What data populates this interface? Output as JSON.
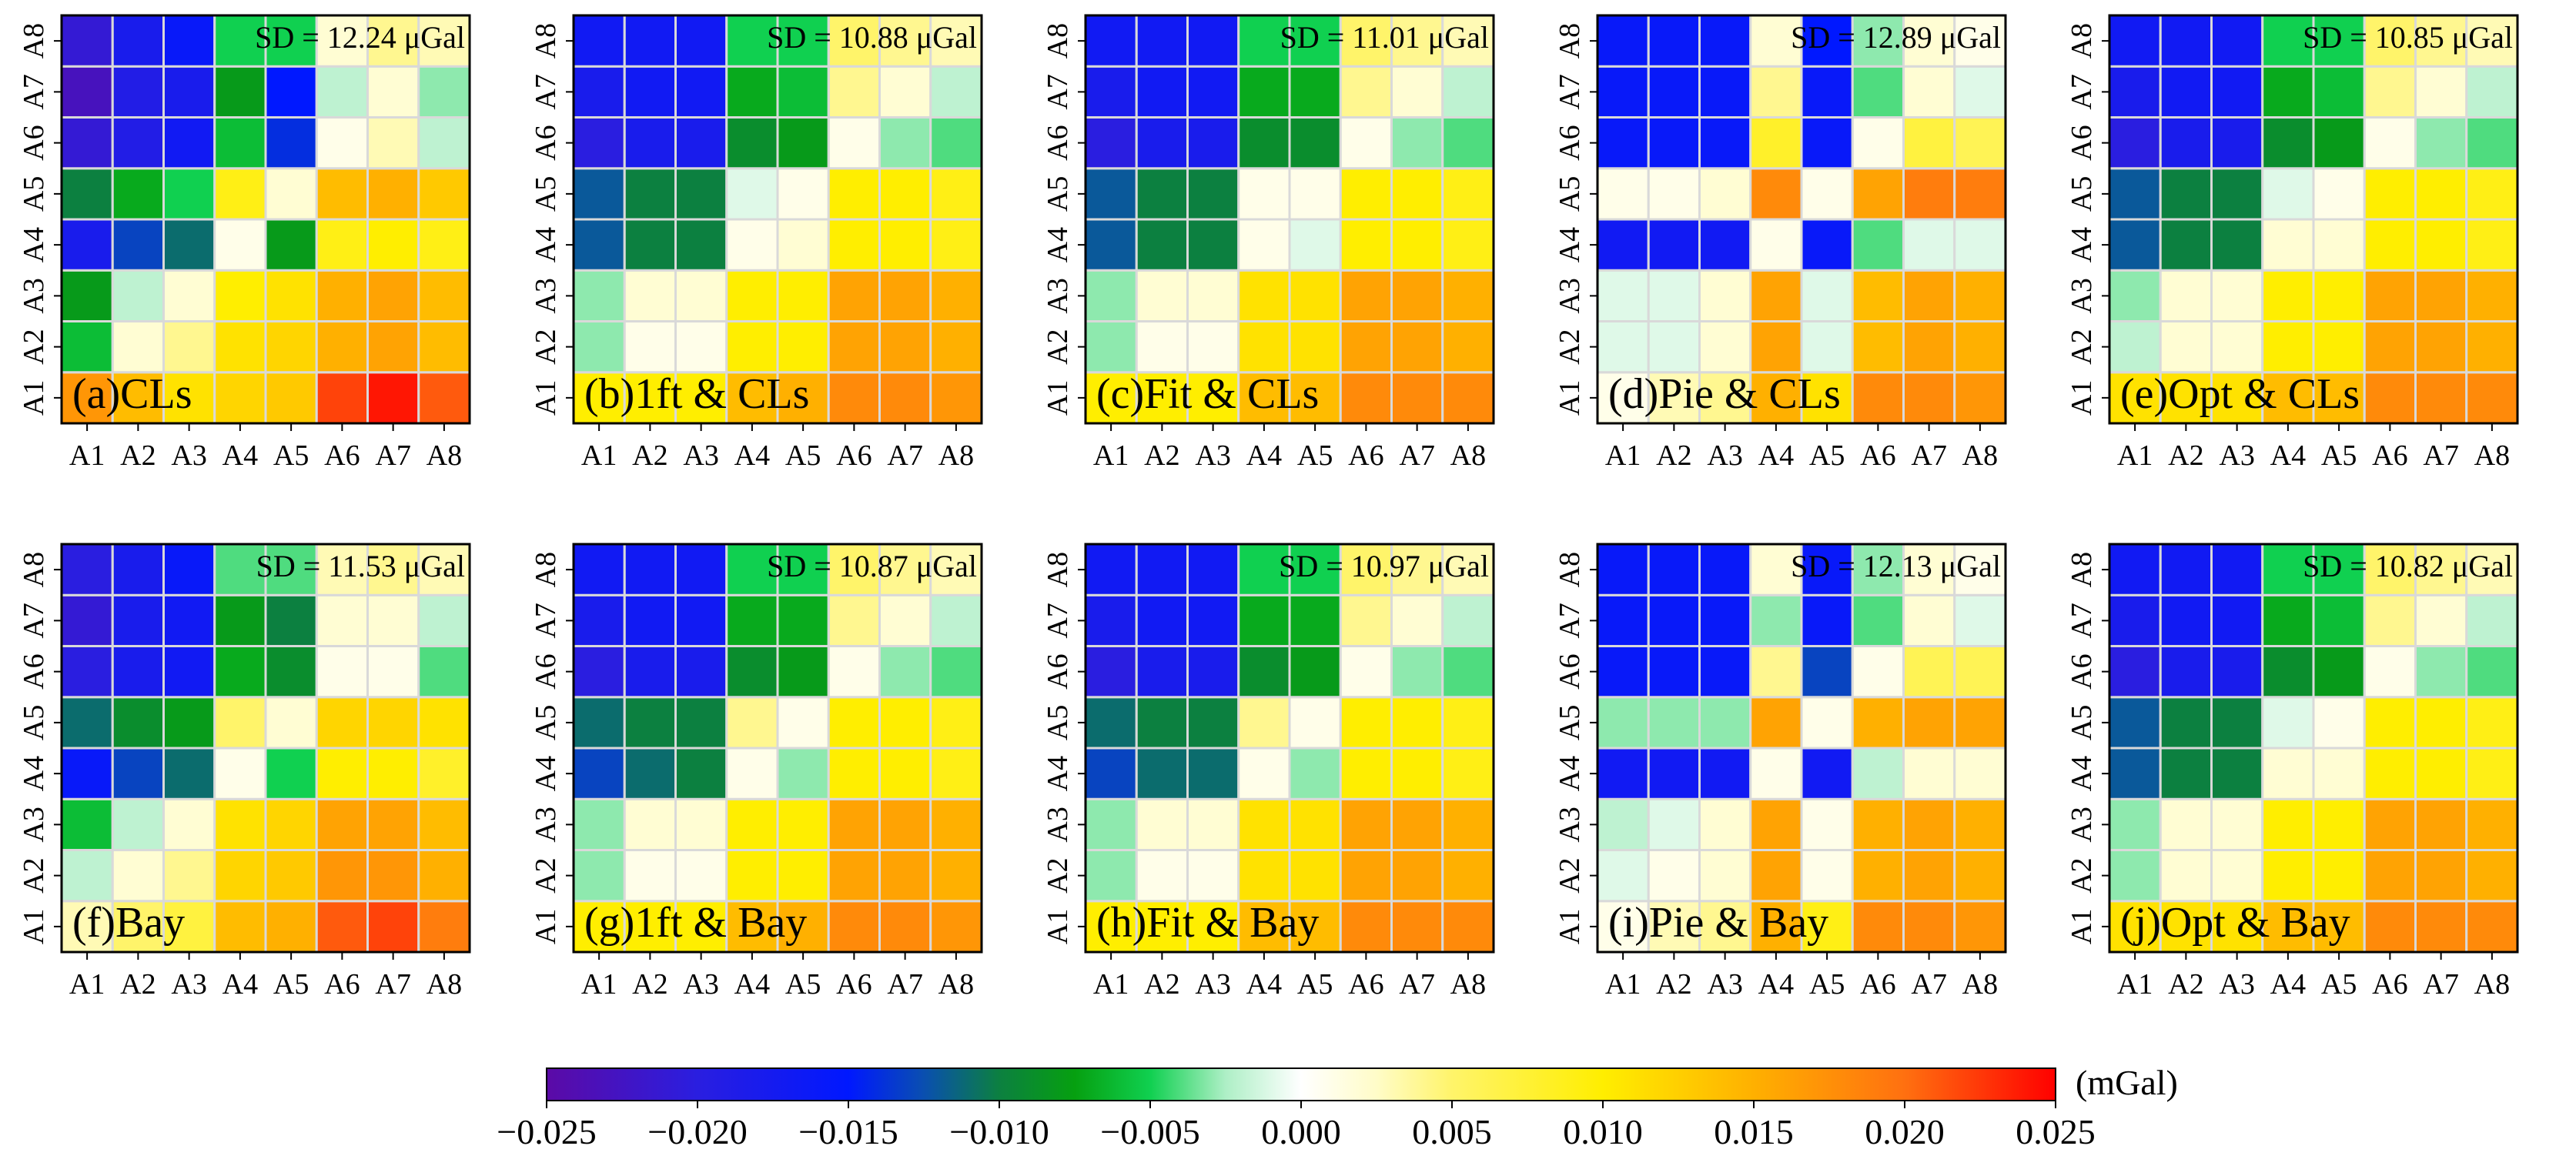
{
  "figure": {
    "panel_grid": {
      "rows": 2,
      "cols": 5
    },
    "colorbar": {
      "unit": "(mGal)",
      "range": [
        -0.025,
        0.025
      ],
      "ticks": [
        "−0.025",
        "−0.020",
        "−0.015",
        "−0.010",
        "−0.005",
        "0.000",
        "0.005",
        "0.010",
        "0.015",
        "0.020",
        "0.025"
      ],
      "stops": [
        [
          -0.025,
          "#5b0aa6"
        ],
        [
          -0.02,
          "#2a1ee0"
        ],
        [
          -0.015,
          "#0018ff"
        ],
        [
          -0.0125,
          "#0a4fb0"
        ],
        [
          -0.01,
          "#0c8040"
        ],
        [
          -0.0075,
          "#06a010"
        ],
        [
          -0.005,
          "#10d050"
        ],
        [
          -0.0025,
          "#aeefc6"
        ],
        [
          0.0,
          "#ffffff"
        ],
        [
          0.0025,
          "#fffcc8"
        ],
        [
          0.005,
          "#fff46a"
        ],
        [
          0.01,
          "#ffee00"
        ],
        [
          0.015,
          "#ffb000"
        ],
        [
          0.02,
          "#ff7010"
        ],
        [
          0.025,
          "#ff0000"
        ]
      ]
    }
  },
  "chart_data": [
    {
      "type": "heatmap",
      "label": "(a)CLs",
      "sd": "SD = 12.24 μGal",
      "x": [
        "A1",
        "A2",
        "A3",
        "A4",
        "A5",
        "A6",
        "A7",
        "A8"
      ],
      "y": [
        "A1",
        "A2",
        "A3",
        "A4",
        "A5",
        "A6",
        "A7",
        "A8"
      ],
      "z": [
        [
          0.017,
          0.014,
          0.011,
          0.012,
          0.013,
          0.022,
          0.024,
          0.021
        ],
        [
          -0.006,
          0.002,
          0.004,
          0.011,
          0.012,
          0.015,
          0.016,
          0.014
        ],
        [
          -0.008,
          -0.002,
          0.002,
          0.01,
          0.011,
          0.015,
          0.016,
          0.014
        ],
        [
          -0.018,
          -0.013,
          -0.011,
          0.001,
          -0.008,
          0.009,
          0.01,
          0.009
        ],
        [
          -0.01,
          -0.007,
          -0.005,
          0.009,
          0.002,
          0.014,
          0.015,
          0.013
        ],
        [
          -0.021,
          -0.019,
          -0.017,
          -0.006,
          -0.014,
          0.001,
          0.003,
          -0.002
        ],
        [
          -0.023,
          -0.019,
          -0.018,
          -0.008,
          -0.015,
          -0.002,
          0.002,
          -0.003
        ],
        [
          -0.021,
          -0.018,
          -0.016,
          -0.005,
          -0.005,
          0.002,
          0.004,
          0.003
        ]
      ]
    },
    {
      "type": "heatmap",
      "label": "(b)1ft & CLs",
      "sd": "SD = 10.88 μGal",
      "x": [
        "A1",
        "A2",
        "A3",
        "A4",
        "A5",
        "A6",
        "A7",
        "A8"
      ],
      "y": [
        "A1",
        "A2",
        "A3",
        "A4",
        "A5",
        "A6",
        "A7",
        "A8"
      ],
      "z": [
        [
          0.01,
          0.01,
          0.01,
          0.014,
          0.015,
          0.018,
          0.018,
          0.017
        ],
        [
          -0.003,
          0.001,
          0.001,
          0.01,
          0.01,
          0.016,
          0.016,
          0.015
        ],
        [
          -0.003,
          0.002,
          0.002,
          0.01,
          0.01,
          0.016,
          0.016,
          0.015
        ],
        [
          -0.012,
          -0.01,
          -0.01,
          0.001,
          0.002,
          0.01,
          0.01,
          0.009
        ],
        [
          -0.012,
          -0.01,
          -0.01,
          -0.001,
          0.001,
          0.01,
          0.01,
          0.009
        ],
        [
          -0.02,
          -0.018,
          -0.018,
          -0.009,
          -0.008,
          0.001,
          -0.003,
          -0.004
        ],
        [
          -0.018,
          -0.017,
          -0.017,
          -0.007,
          -0.006,
          0.004,
          0.002,
          -0.002
        ],
        [
          -0.017,
          -0.017,
          -0.017,
          -0.005,
          -0.005,
          0.005,
          0.004,
          0.003
        ]
      ]
    },
    {
      "type": "heatmap",
      "label": "(c)Fit & CLs",
      "sd": "SD = 11.01 μGal",
      "x": [
        "A1",
        "A2",
        "A3",
        "A4",
        "A5",
        "A6",
        "A7",
        "A8"
      ],
      "y": [
        "A1",
        "A2",
        "A3",
        "A4",
        "A5",
        "A6",
        "A7",
        "A8"
      ],
      "z": [
        [
          0.01,
          0.01,
          0.01,
          0.014,
          0.014,
          0.018,
          0.018,
          0.018
        ],
        [
          -0.003,
          0.001,
          0.001,
          0.011,
          0.011,
          0.016,
          0.016,
          0.015
        ],
        [
          -0.003,
          0.002,
          0.002,
          0.011,
          0.011,
          0.016,
          0.016,
          0.015
        ],
        [
          -0.012,
          -0.01,
          -0.01,
          0.001,
          -0.001,
          0.01,
          0.01,
          0.009
        ],
        [
          -0.012,
          -0.01,
          -0.01,
          0.001,
          0.001,
          0.01,
          0.01,
          0.009
        ],
        [
          -0.02,
          -0.018,
          -0.018,
          -0.009,
          -0.009,
          0.001,
          -0.003,
          -0.004
        ],
        [
          -0.018,
          -0.017,
          -0.017,
          -0.007,
          -0.007,
          0.004,
          0.002,
          -0.002
        ],
        [
          -0.017,
          -0.017,
          -0.017,
          -0.005,
          -0.005,
          0.005,
          0.004,
          0.003
        ]
      ]
    },
    {
      "type": "heatmap",
      "label": "(d)Pie & CLs",
      "sd": "SD = 12.89 μGal",
      "x": [
        "A1",
        "A2",
        "A3",
        "A4",
        "A5",
        "A6",
        "A7",
        "A8"
      ],
      "y": [
        "A1",
        "A2",
        "A3",
        "A4",
        "A5",
        "A6",
        "A7",
        "A8"
      ],
      "z": [
        [
          0.001,
          0.003,
          0.004,
          0.015,
          0.011,
          0.018,
          0.018,
          0.017
        ],
        [
          -0.001,
          -0.001,
          0.002,
          0.016,
          -0.001,
          0.014,
          0.016,
          0.015
        ],
        [
          -0.001,
          -0.001,
          0.002,
          0.016,
          -0.001,
          0.014,
          0.016,
          0.015
        ],
        [
          -0.017,
          -0.017,
          -0.017,
          0.001,
          -0.016,
          -0.004,
          -0.001,
          -0.001
        ],
        [
          0.001,
          0.001,
          0.002,
          0.018,
          0.001,
          0.016,
          0.019,
          0.019
        ],
        [
          -0.016,
          -0.016,
          -0.016,
          0.008,
          -0.016,
          0.001,
          0.007,
          0.006
        ],
        [
          -0.016,
          -0.016,
          -0.016,
          0.004,
          -0.016,
          -0.004,
          0.002,
          -0.001
        ],
        [
          -0.016,
          -0.016,
          -0.016,
          0.002,
          -0.015,
          -0.003,
          0.002,
          0.001
        ]
      ]
    },
    {
      "type": "heatmap",
      "label": "(e)Opt & CLs",
      "sd": "SD = 10.85 μGal",
      "x": [
        "A1",
        "A2",
        "A3",
        "A4",
        "A5",
        "A6",
        "A7",
        "A8"
      ],
      "y": [
        "A1",
        "A2",
        "A3",
        "A4",
        "A5",
        "A6",
        "A7",
        "A8"
      ],
      "z": [
        [
          0.011,
          0.011,
          0.011,
          0.014,
          0.014,
          0.018,
          0.018,
          0.018
        ],
        [
          -0.002,
          0.002,
          0.002,
          0.01,
          0.01,
          0.016,
          0.016,
          0.015
        ],
        [
          -0.003,
          0.002,
          0.002,
          0.01,
          0.01,
          0.016,
          0.016,
          0.015
        ],
        [
          -0.012,
          -0.01,
          -0.01,
          0.002,
          0.002,
          0.01,
          0.01,
          0.009
        ],
        [
          -0.012,
          -0.01,
          -0.01,
          -0.001,
          0.001,
          0.01,
          0.01,
          0.009
        ],
        [
          -0.02,
          -0.018,
          -0.018,
          -0.009,
          -0.008,
          0.001,
          -0.003,
          -0.004
        ],
        [
          -0.018,
          -0.017,
          -0.017,
          -0.007,
          -0.006,
          0.004,
          0.002,
          -0.002
        ],
        [
          -0.017,
          -0.017,
          -0.017,
          -0.005,
          -0.005,
          0.005,
          0.004,
          0.003
        ]
      ]
    },
    {
      "type": "heatmap",
      "label": "(f)Bay",
      "sd": "SD = 11.53 μGal",
      "x": [
        "A1",
        "A2",
        "A3",
        "A4",
        "A5",
        "A6",
        "A7",
        "A8"
      ],
      "y": [
        "A1",
        "A2",
        "A3",
        "A4",
        "A5",
        "A6",
        "A7",
        "A8"
      ],
      "z": [
        [
          0.003,
          0.005,
          0.007,
          0.014,
          0.015,
          0.021,
          0.022,
          0.019
        ],
        [
          -0.002,
          0.002,
          0.004,
          0.012,
          0.013,
          0.017,
          0.017,
          0.015
        ],
        [
          -0.006,
          -0.002,
          0.002,
          0.011,
          0.012,
          0.016,
          0.016,
          0.014
        ],
        [
          -0.016,
          -0.013,
          -0.011,
          0.001,
          -0.005,
          0.01,
          0.01,
          0.008
        ],
        [
          -0.011,
          -0.009,
          -0.008,
          0.005,
          0.002,
          0.012,
          0.012,
          0.011
        ],
        [
          -0.02,
          -0.018,
          -0.017,
          -0.007,
          -0.009,
          0.001,
          0.001,
          -0.004
        ],
        [
          -0.021,
          -0.018,
          -0.017,
          -0.008,
          -0.01,
          0.002,
          0.002,
          -0.002
        ],
        [
          -0.02,
          -0.018,
          -0.016,
          -0.004,
          -0.004,
          0.003,
          0.004,
          0.003
        ]
      ]
    },
    {
      "type": "heatmap",
      "label": "(g)1ft & Bay",
      "sd": "SD = 10.87 μGal",
      "x": [
        "A1",
        "A2",
        "A3",
        "A4",
        "A5",
        "A6",
        "A7",
        "A8"
      ],
      "y": [
        "A1",
        "A2",
        "A3",
        "A4",
        "A5",
        "A6",
        "A7",
        "A8"
      ],
      "z": [
        [
          0.01,
          0.01,
          0.01,
          0.014,
          0.015,
          0.018,
          0.018,
          0.017
        ],
        [
          -0.003,
          0.001,
          0.001,
          0.01,
          0.01,
          0.016,
          0.016,
          0.015
        ],
        [
          -0.003,
          0.002,
          0.002,
          0.01,
          0.01,
          0.016,
          0.016,
          0.015
        ],
        [
          -0.013,
          -0.011,
          -0.01,
          0.001,
          -0.003,
          0.01,
          0.01,
          0.009
        ],
        [
          -0.011,
          -0.01,
          -0.01,
          0.004,
          0.001,
          0.01,
          0.01,
          0.009
        ],
        [
          -0.02,
          -0.018,
          -0.018,
          -0.009,
          -0.008,
          0.001,
          -0.003,
          -0.004
        ],
        [
          -0.018,
          -0.017,
          -0.017,
          -0.007,
          -0.007,
          0.004,
          0.002,
          -0.002
        ],
        [
          -0.017,
          -0.017,
          -0.017,
          -0.005,
          -0.005,
          0.005,
          0.004,
          0.003
        ]
      ]
    },
    {
      "type": "heatmap",
      "label": "(h)Fit & Bay",
      "sd": "SD = 10.97 μGal",
      "x": [
        "A1",
        "A2",
        "A3",
        "A4",
        "A5",
        "A6",
        "A7",
        "A8"
      ],
      "y": [
        "A1",
        "A2",
        "A3",
        "A4",
        "A5",
        "A6",
        "A7",
        "A8"
      ],
      "z": [
        [
          0.01,
          0.01,
          0.01,
          0.014,
          0.014,
          0.018,
          0.018,
          0.018
        ],
        [
          -0.003,
          0.001,
          0.001,
          0.011,
          0.011,
          0.016,
          0.016,
          0.015
        ],
        [
          -0.003,
          0.002,
          0.002,
          0.011,
          0.011,
          0.016,
          0.016,
          0.015
        ],
        [
          -0.013,
          -0.011,
          -0.011,
          0.001,
          -0.003,
          0.01,
          0.01,
          0.009
        ],
        [
          -0.011,
          -0.01,
          -0.01,
          0.004,
          0.001,
          0.01,
          0.01,
          0.009
        ],
        [
          -0.02,
          -0.018,
          -0.018,
          -0.009,
          -0.008,
          0.001,
          -0.003,
          -0.004
        ],
        [
          -0.018,
          -0.017,
          -0.017,
          -0.007,
          -0.007,
          0.004,
          0.002,
          -0.002
        ],
        [
          -0.017,
          -0.017,
          -0.017,
          -0.005,
          -0.005,
          0.005,
          0.004,
          0.003
        ]
      ]
    },
    {
      "type": "heatmap",
      "label": "(i)Pie & Bay",
      "sd": "SD = 12.13 μGal",
      "x": [
        "A1",
        "A2",
        "A3",
        "A4",
        "A5",
        "A6",
        "A7",
        "A8"
      ],
      "y": [
        "A1",
        "A2",
        "A3",
        "A4",
        "A5",
        "A6",
        "A7",
        "A8"
      ],
      "z": [
        [
          0.001,
          0.003,
          0.004,
          0.015,
          0.009,
          0.018,
          0.018,
          0.017
        ],
        [
          -0.001,
          0.001,
          0.002,
          0.016,
          0.001,
          0.015,
          0.016,
          0.015
        ],
        [
          -0.002,
          -0.001,
          0.002,
          0.016,
          0.001,
          0.015,
          0.016,
          0.015
        ],
        [
          -0.017,
          -0.017,
          -0.017,
          0.001,
          -0.017,
          -0.002,
          0.002,
          0.002
        ],
        [
          -0.003,
          -0.003,
          -0.003,
          0.016,
          0.001,
          0.015,
          0.016,
          0.016
        ],
        [
          -0.016,
          -0.016,
          -0.016,
          0.004,
          -0.013,
          0.001,
          0.006,
          0.006
        ],
        [
          -0.016,
          -0.016,
          -0.016,
          -0.003,
          -0.016,
          -0.004,
          0.002,
          -0.001
        ],
        [
          -0.016,
          -0.016,
          -0.016,
          0.002,
          -0.016,
          -0.003,
          0.002,
          0.001
        ]
      ]
    },
    {
      "type": "heatmap",
      "label": "(j)Opt & Bay",
      "sd": "SD = 10.82 μGal",
      "x": [
        "A1",
        "A2",
        "A3",
        "A4",
        "A5",
        "A6",
        "A7",
        "A8"
      ],
      "y": [
        "A1",
        "A2",
        "A3",
        "A4",
        "A5",
        "A6",
        "A7",
        "A8"
      ],
      "z": [
        [
          0.011,
          0.011,
          0.011,
          0.014,
          0.014,
          0.018,
          0.018,
          0.018
        ],
        [
          -0.003,
          0.002,
          0.002,
          0.01,
          0.01,
          0.016,
          0.016,
          0.015
        ],
        [
          -0.003,
          0.002,
          0.002,
          0.01,
          0.01,
          0.016,
          0.016,
          0.015
        ],
        [
          -0.012,
          -0.01,
          -0.01,
          0.002,
          0.002,
          0.01,
          0.01,
          0.009
        ],
        [
          -0.012,
          -0.01,
          -0.01,
          -0.001,
          0.001,
          0.01,
          0.01,
          0.009
        ],
        [
          -0.02,
          -0.018,
          -0.018,
          -0.009,
          -0.008,
          0.001,
          -0.003,
          -0.004
        ],
        [
          -0.018,
          -0.017,
          -0.017,
          -0.007,
          -0.006,
          0.004,
          0.002,
          -0.002
        ],
        [
          -0.017,
          -0.017,
          -0.017,
          -0.005,
          -0.005,
          0.005,
          0.004,
          0.003
        ]
      ]
    }
  ]
}
